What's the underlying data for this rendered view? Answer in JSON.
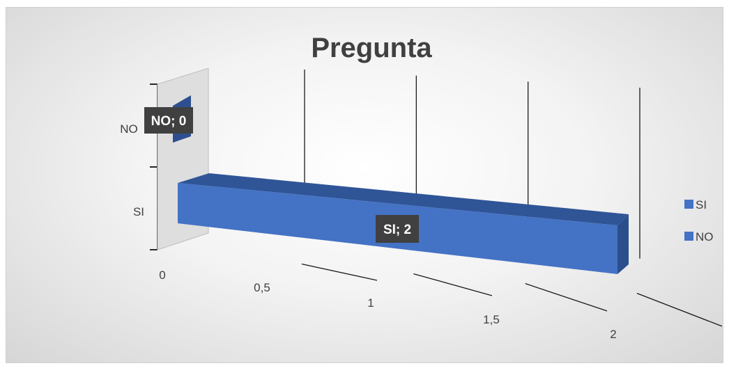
{
  "chart_data": {
    "type": "bar",
    "orientation": "horizontal",
    "style": "3d",
    "title": "Pregunta",
    "categories": [
      "SI",
      "NO"
    ],
    "series": [
      {
        "name": "SI",
        "values": [
          2,
          null
        ],
        "color": "#4472c4"
      },
      {
        "name": "NO",
        "values": [
          null,
          0
        ],
        "color": "#2e4f8f"
      }
    ],
    "data_labels": [
      "SI; 2",
      "NO; 0"
    ],
    "x_ticks": [
      "0",
      "0,5",
      "1",
      "1,5",
      "2"
    ],
    "xlim": [
      0,
      2
    ],
    "grid": true,
    "legend": {
      "position": "right",
      "entries": [
        "SI",
        "NO"
      ]
    }
  }
}
